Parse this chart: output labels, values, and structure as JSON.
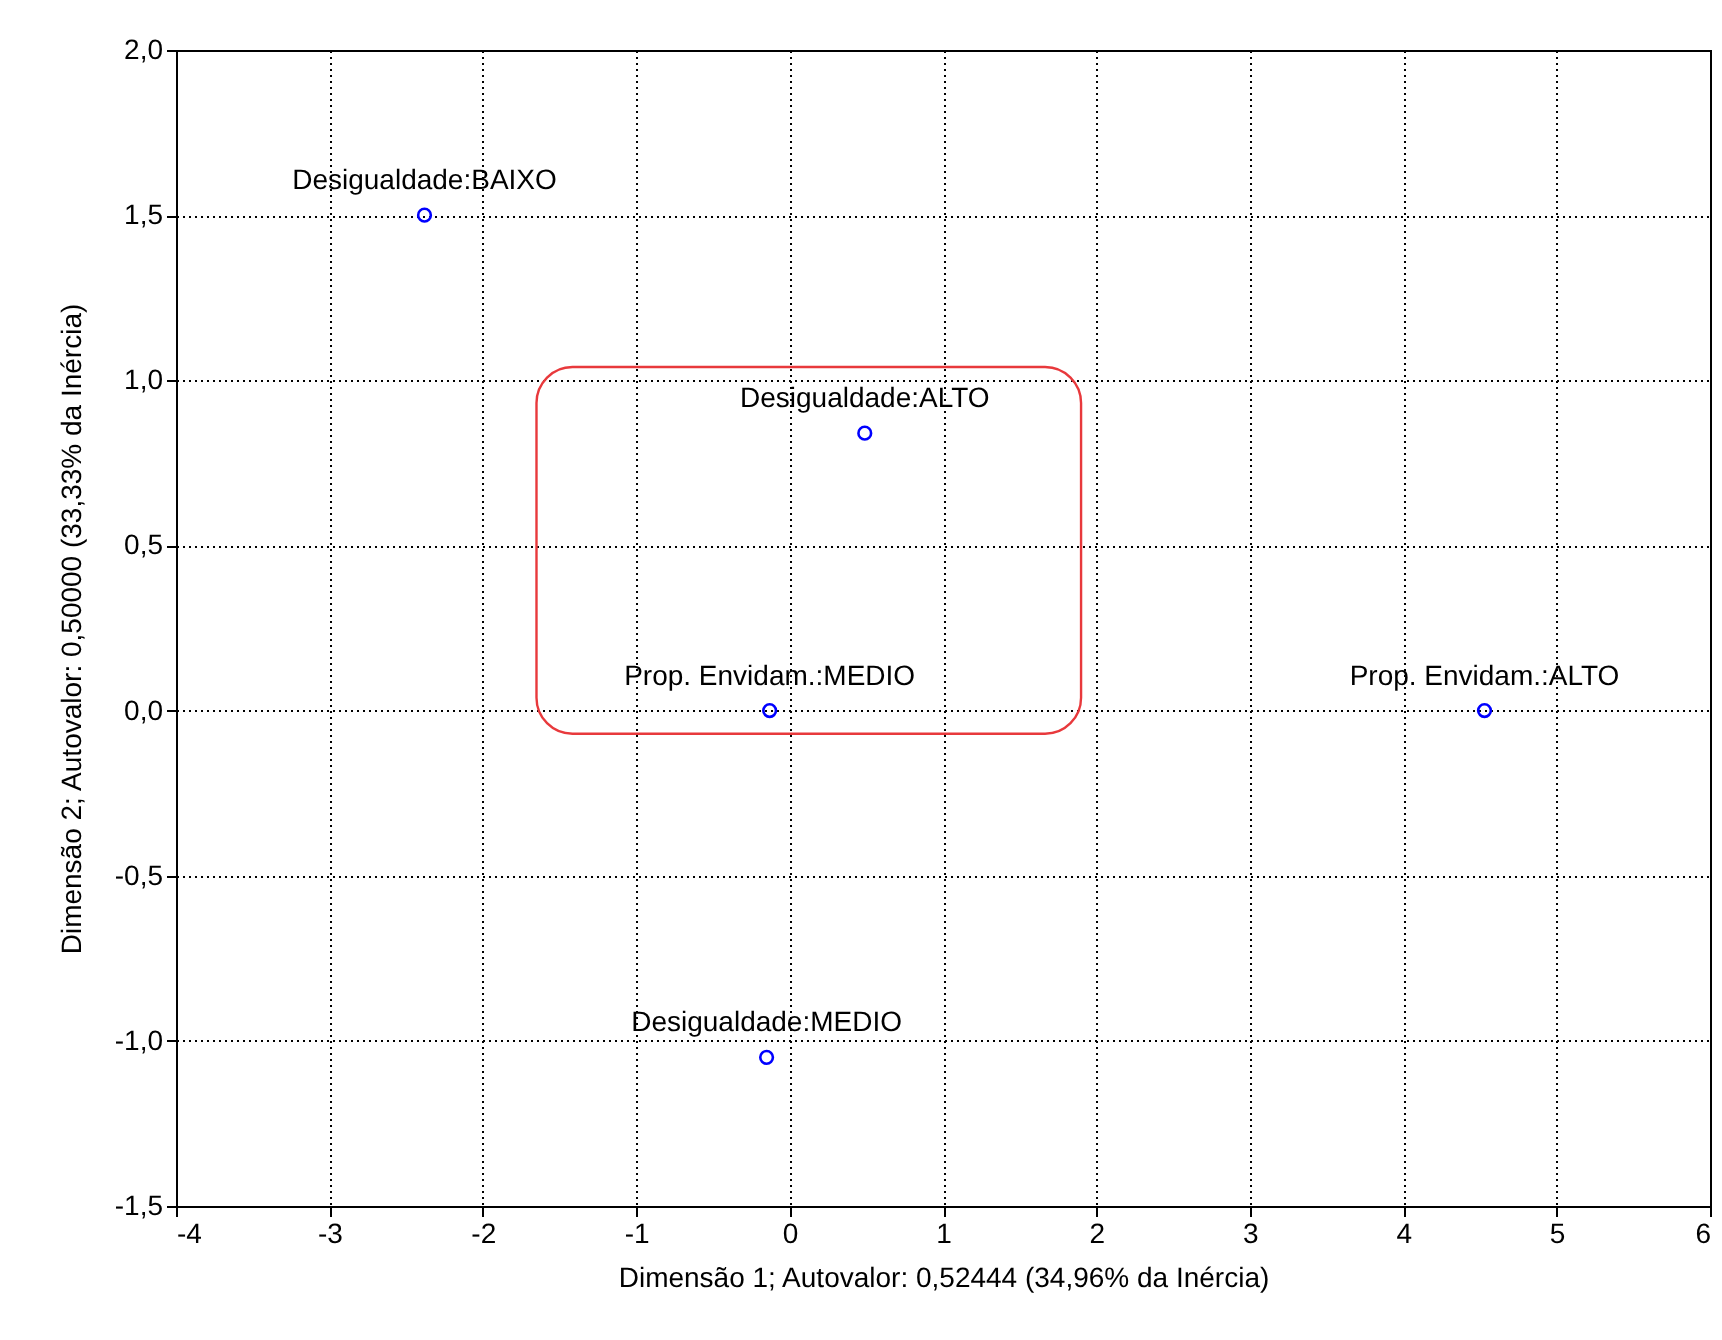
{
  "chart_data": {
    "type": "scatter",
    "xlabel": "Dimensão 1; Autovalor: 0,52444 (34,96% da Inércia)",
    "ylabel": "Dimensão 2; Autovalor: 0,50000 (33,33% da Inércia)",
    "series": [
      {
        "color": "#0000ff",
        "x": [
          -2.38,
          0.49,
          -0.13,
          4.53,
          -0.15
        ],
        "values": [
          1.5,
          0.84,
          0,
          0,
          -1.05
        ]
      }
    ],
    "annotations": [
      {
        "text": "Desigualdade:BAIXO",
        "x": -2.38,
        "y": 1.5
      },
      {
        "text": "Desigualdade:ALTO",
        "x": 0.49,
        "y": 0.84
      },
      {
        "text": "Prop. Envidam.:MEDIO",
        "x": -0.13,
        "y": 0
      },
      {
        "text": "Prop. Envidam.:ALTO",
        "x": 4.53,
        "y": 0
      },
      {
        "text": "Desigualdade:MEDIO",
        "x": -0.15,
        "y": -1.05
      }
    ],
    "xlim": [
      -4,
      6
    ],
    "xticks": [
      -4,
      -3,
      -2,
      -1,
      0,
      1,
      2,
      3,
      4,
      5,
      6
    ],
    "ylim": [
      -1.5,
      2
    ],
    "yticks": [
      {
        "value": -1.5,
        "label": "-1,5"
      },
      {
        "value": -1,
        "label": "-1,0"
      },
      {
        "value": -0.5,
        "label": "-0,5"
      },
      {
        "value": 0,
        "label": "0,0"
      },
      {
        "value": 0.5,
        "label": "0,5"
      },
      {
        "value": 1,
        "label": "1,0"
      },
      {
        "value": 1.5,
        "label": "1,5"
      },
      {
        "value": 2,
        "label": "2,0"
      }
    ],
    "grid": true,
    "marker": "circle"
  }
}
